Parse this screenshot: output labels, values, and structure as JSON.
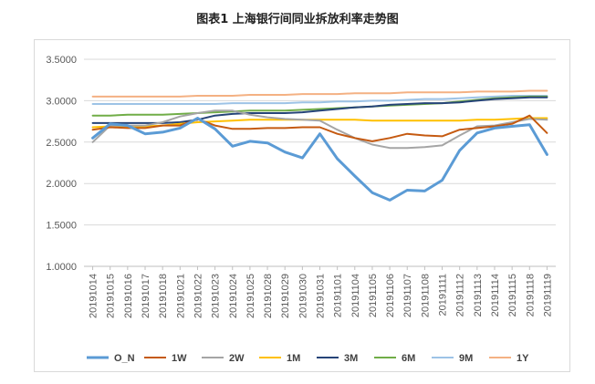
{
  "title": "图表1  上海银行间同业拆放利率走势图",
  "chart_data": {
    "type": "line",
    "title": "图表1  上海银行间同业拆放利率走势图",
    "xlabel": "",
    "ylabel": "",
    "ylim": [
      1.0,
      3.5
    ],
    "yticks": [
      "1.0000",
      "1.5000",
      "2.0000",
      "2.5000",
      "3.0000",
      "3.5000"
    ],
    "grid": true,
    "legend_position": "bottom",
    "categories": [
      "20191014",
      "20191015",
      "20191016",
      "20191017",
      "20191018",
      "20191021",
      "20191022",
      "20191023",
      "20191024",
      "20191025",
      "20191028",
      "20191029",
      "20191030",
      "20191031",
      "20191101",
      "20191104",
      "20191105",
      "20191106",
      "20191107",
      "20191108",
      "20191111",
      "20191112",
      "20191113",
      "20191114",
      "20191115",
      "20191118",
      "20191119"
    ],
    "series": [
      {
        "name": "O_N",
        "color": "#5b9bd5",
        "values": [
          2.55,
          2.72,
          2.7,
          2.6,
          2.62,
          2.67,
          2.79,
          2.66,
          2.45,
          2.51,
          2.49,
          2.38,
          2.31,
          2.6,
          2.3,
          2.09,
          1.89,
          1.8,
          1.92,
          1.91,
          2.04,
          2.4,
          2.61,
          2.67,
          2.69,
          2.71,
          2.35
        ]
      },
      {
        "name": "1W",
        "color": "#c55a11",
        "values": [
          2.65,
          2.68,
          2.67,
          2.67,
          2.7,
          2.7,
          2.78,
          2.7,
          2.66,
          2.66,
          2.67,
          2.67,
          2.68,
          2.68,
          2.6,
          2.55,
          2.51,
          2.55,
          2.6,
          2.58,
          2.57,
          2.65,
          2.67,
          2.69,
          2.72,
          2.82,
          2.61
        ]
      },
      {
        "name": "2W",
        "color": "#a5a5a5",
        "values": [
          2.5,
          2.7,
          2.7,
          2.7,
          2.74,
          2.81,
          2.85,
          2.88,
          2.88,
          2.83,
          2.8,
          2.78,
          2.77,
          2.76,
          2.65,
          2.55,
          2.47,
          2.43,
          2.43,
          2.44,
          2.46,
          2.58,
          2.69,
          2.7,
          2.74,
          2.78,
          2.77
        ]
      },
      {
        "name": "1M",
        "color": "#ffc000",
        "values": [
          2.68,
          2.69,
          2.69,
          2.69,
          2.7,
          2.72,
          2.74,
          2.75,
          2.76,
          2.77,
          2.77,
          2.77,
          2.77,
          2.77,
          2.77,
          2.77,
          2.76,
          2.76,
          2.76,
          2.76,
          2.76,
          2.76,
          2.77,
          2.77,
          2.78,
          2.79,
          2.79
        ]
      },
      {
        "name": "3M",
        "color": "#264478",
        "values": [
          2.73,
          2.73,
          2.73,
          2.73,
          2.73,
          2.74,
          2.77,
          2.82,
          2.84,
          2.85,
          2.85,
          2.85,
          2.86,
          2.88,
          2.9,
          2.92,
          2.93,
          2.95,
          2.96,
          2.97,
          2.97,
          2.98,
          3.0,
          3.02,
          3.03,
          3.04,
          3.04
        ]
      },
      {
        "name": "6M",
        "color": "#70ad47",
        "values": [
          2.82,
          2.82,
          2.83,
          2.83,
          2.83,
          2.84,
          2.85,
          2.86,
          2.87,
          2.88,
          2.88,
          2.88,
          2.89,
          2.9,
          2.91,
          2.92,
          2.93,
          2.94,
          2.95,
          2.96,
          2.97,
          2.99,
          3.01,
          3.03,
          3.04,
          3.05,
          3.05
        ]
      },
      {
        "name": "9M",
        "color": "#9dc3e6",
        "values": [
          2.96,
          2.96,
          2.96,
          2.96,
          2.96,
          2.96,
          2.96,
          2.96,
          2.97,
          2.97,
          2.97,
          2.97,
          2.98,
          2.98,
          2.99,
          2.99,
          3.0,
          3.0,
          3.01,
          3.02,
          3.02,
          3.03,
          3.04,
          3.05,
          3.06,
          3.06,
          3.06
        ]
      },
      {
        "name": "1Y",
        "color": "#f4b183",
        "values": [
          3.05,
          3.05,
          3.05,
          3.05,
          3.05,
          3.05,
          3.06,
          3.06,
          3.06,
          3.07,
          3.07,
          3.07,
          3.08,
          3.08,
          3.08,
          3.09,
          3.09,
          3.09,
          3.1,
          3.1,
          3.1,
          3.1,
          3.11,
          3.11,
          3.11,
          3.12,
          3.12
        ]
      }
    ]
  }
}
